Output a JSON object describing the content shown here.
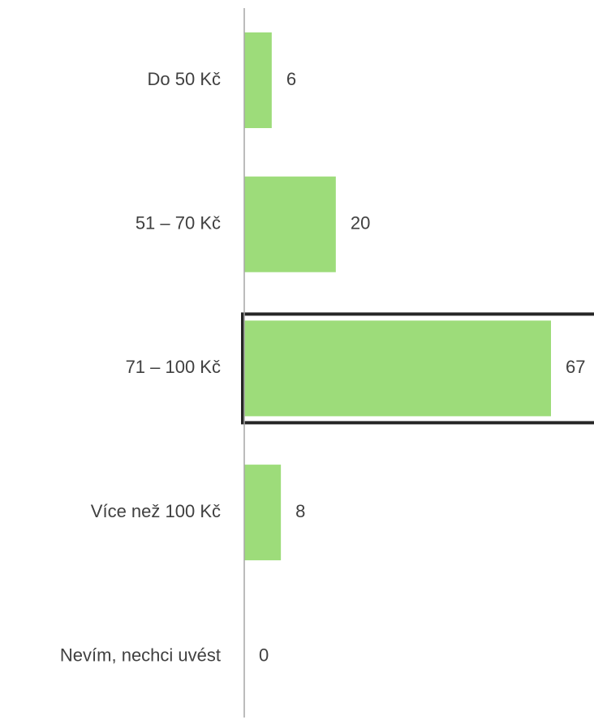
{
  "chart_data": {
    "type": "bar",
    "orientation": "horizontal",
    "categories": [
      "Do 50 Kč",
      "51 – 70 Kč",
      "71 – 100 Kč",
      "Více než 100 Kč",
      "Nevím, nechci uvést"
    ],
    "values": [
      6,
      20,
      67,
      8,
      0
    ],
    "color": "#9ddc7a",
    "highlight": 2
  }
}
